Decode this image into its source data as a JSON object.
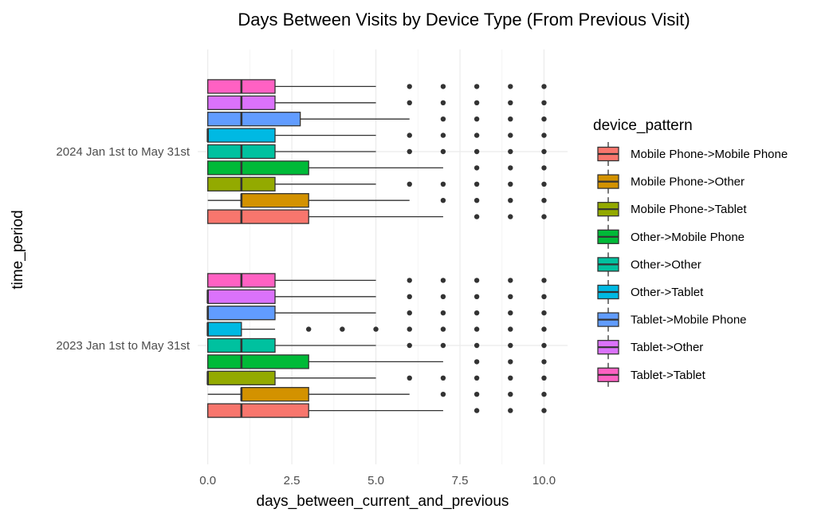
{
  "chart_data": {
    "type": "boxplot",
    "orientation": "horizontal",
    "title": "Days Between Visits by Device Type (From Previous Visit)",
    "xlabel": "days_between_current_and_previous",
    "ylabel": "time_period",
    "xlim": [
      -0.3,
      10.7
    ],
    "x_ticks": [
      0,
      2.5,
      5,
      7.5,
      10
    ],
    "x_tick_labels": [
      "0.0",
      "2.5",
      "5.0",
      "7.5",
      "10.0"
    ],
    "grid": true,
    "legend_position": "right",
    "legend_title": "device_pattern",
    "categories": [
      "2023 Jan 1st to May 31st",
      "2024 Jan 1st to May 31st"
    ],
    "groups": [
      {
        "name": "Mobile Phone->Mobile Phone",
        "color": "#F8766D"
      },
      {
        "name": "Mobile Phone->Other",
        "color": "#D39200"
      },
      {
        "name": "Mobile Phone->Tablet",
        "color": "#93AA00"
      },
      {
        "name": "Other->Mobile Phone",
        "color": "#00BA38"
      },
      {
        "name": "Other->Other",
        "color": "#00C19F"
      },
      {
        "name": "Other->Tablet",
        "color": "#00B9E3"
      },
      {
        "name": "Tablet->Mobile Phone",
        "color": "#619CFF"
      },
      {
        "name": "Tablet->Other",
        "color": "#DB72FB"
      },
      {
        "name": "Tablet->Tablet",
        "color": "#FF61C3"
      }
    ],
    "boxes": [
      {
        "period": "2023 Jan 1st to May 31st",
        "group": "Mobile Phone->Mobile Phone",
        "whisker_low": 0,
        "q1": 0,
        "median": 1,
        "q3": 3,
        "whisker_high": 7,
        "outliers": [
          8,
          9,
          10
        ]
      },
      {
        "period": "2023 Jan 1st to May 31st",
        "group": "Mobile Phone->Other",
        "whisker_low": 0,
        "q1": 1,
        "median": 1,
        "q3": 3,
        "whisker_high": 6,
        "outliers": [
          7,
          8,
          9,
          10
        ]
      },
      {
        "period": "2023 Jan 1st to May 31st",
        "group": "Mobile Phone->Tablet",
        "whisker_low": 0,
        "q1": 0,
        "median": 0,
        "q3": 2,
        "whisker_high": 5,
        "outliers": [
          6,
          7,
          8,
          9,
          10
        ]
      },
      {
        "period": "2023 Jan 1st to May 31st",
        "group": "Other->Mobile Phone",
        "whisker_low": 0,
        "q1": 0,
        "median": 1,
        "q3": 3,
        "whisker_high": 7,
        "outliers": [
          8,
          9,
          10
        ]
      },
      {
        "period": "2023 Jan 1st to May 31st",
        "group": "Other->Other",
        "whisker_low": 0,
        "q1": 0,
        "median": 1,
        "q3": 2,
        "whisker_high": 5,
        "outliers": [
          6,
          7,
          8,
          9,
          10
        ]
      },
      {
        "period": "2023 Jan 1st to May 31st",
        "group": "Other->Tablet",
        "whisker_low": 0,
        "q1": 0,
        "median": 0,
        "q3": 1,
        "whisker_high": 2,
        "outliers": [
          3,
          4,
          5,
          6,
          7,
          8,
          9,
          10
        ]
      },
      {
        "period": "2023 Jan 1st to May 31st",
        "group": "Tablet->Mobile Phone",
        "whisker_low": 0,
        "q1": 0,
        "median": 0,
        "q3": 2,
        "whisker_high": 5,
        "outliers": [
          6,
          7,
          8,
          9,
          10
        ]
      },
      {
        "period": "2023 Jan 1st to May 31st",
        "group": "Tablet->Other",
        "whisker_low": 0,
        "q1": 0,
        "median": 0,
        "q3": 2,
        "whisker_high": 5,
        "outliers": [
          6,
          7,
          8,
          9,
          10
        ]
      },
      {
        "period": "2023 Jan 1st to May 31st",
        "group": "Tablet->Tablet",
        "whisker_low": 0,
        "q1": 0,
        "median": 1,
        "q3": 2,
        "whisker_high": 5,
        "outliers": [
          6,
          7,
          8,
          9,
          10
        ]
      },
      {
        "period": "2024 Jan 1st to May 31st",
        "group": "Mobile Phone->Mobile Phone",
        "whisker_low": 0,
        "q1": 0,
        "median": 1,
        "q3": 3,
        "whisker_high": 7,
        "outliers": [
          8,
          9,
          10
        ]
      },
      {
        "period": "2024 Jan 1st to May 31st",
        "group": "Mobile Phone->Other",
        "whisker_low": 0,
        "q1": 1,
        "median": 1,
        "q3": 3,
        "whisker_high": 6,
        "outliers": [
          7,
          8,
          9,
          10
        ]
      },
      {
        "period": "2024 Jan 1st to May 31st",
        "group": "Mobile Phone->Tablet",
        "whisker_low": 0,
        "q1": 0,
        "median": 1,
        "q3": 2,
        "whisker_high": 5,
        "outliers": [
          6,
          7,
          8,
          9,
          10
        ]
      },
      {
        "period": "2024 Jan 1st to May 31st",
        "group": "Other->Mobile Phone",
        "whisker_low": 0,
        "q1": 0,
        "median": 1,
        "q3": 3,
        "whisker_high": 7,
        "outliers": [
          8,
          9,
          10
        ]
      },
      {
        "period": "2024 Jan 1st to May 31st",
        "group": "Other->Other",
        "whisker_low": 0,
        "q1": 0,
        "median": 1,
        "q3": 2,
        "whisker_high": 5,
        "outliers": [
          6,
          7,
          8,
          9,
          10
        ]
      },
      {
        "period": "2024 Jan 1st to May 31st",
        "group": "Other->Tablet",
        "whisker_low": 0,
        "q1": 0,
        "median": 0,
        "q3": 2,
        "whisker_high": 5,
        "outliers": [
          6,
          7,
          8,
          9,
          10
        ]
      },
      {
        "period": "2024 Jan 1st to May 31st",
        "group": "Tablet->Mobile Phone",
        "whisker_low": 0,
        "q1": 0,
        "median": 1,
        "q3": 2.75,
        "whisker_high": 6,
        "outliers": [
          7,
          8,
          9,
          10
        ]
      },
      {
        "period": "2024 Jan 1st to May 31st",
        "group": "Tablet->Other",
        "whisker_low": 0,
        "q1": 0,
        "median": 1,
        "q3": 2,
        "whisker_high": 5,
        "outliers": [
          6,
          7,
          8,
          9,
          10
        ]
      },
      {
        "period": "2024 Jan 1st to May 31st",
        "group": "Tablet->Tablet",
        "whisker_low": 0,
        "q1": 0,
        "median": 1,
        "q3": 2,
        "whisker_high": 5,
        "outliers": [
          6,
          7,
          8,
          9,
          10
        ]
      }
    ]
  }
}
